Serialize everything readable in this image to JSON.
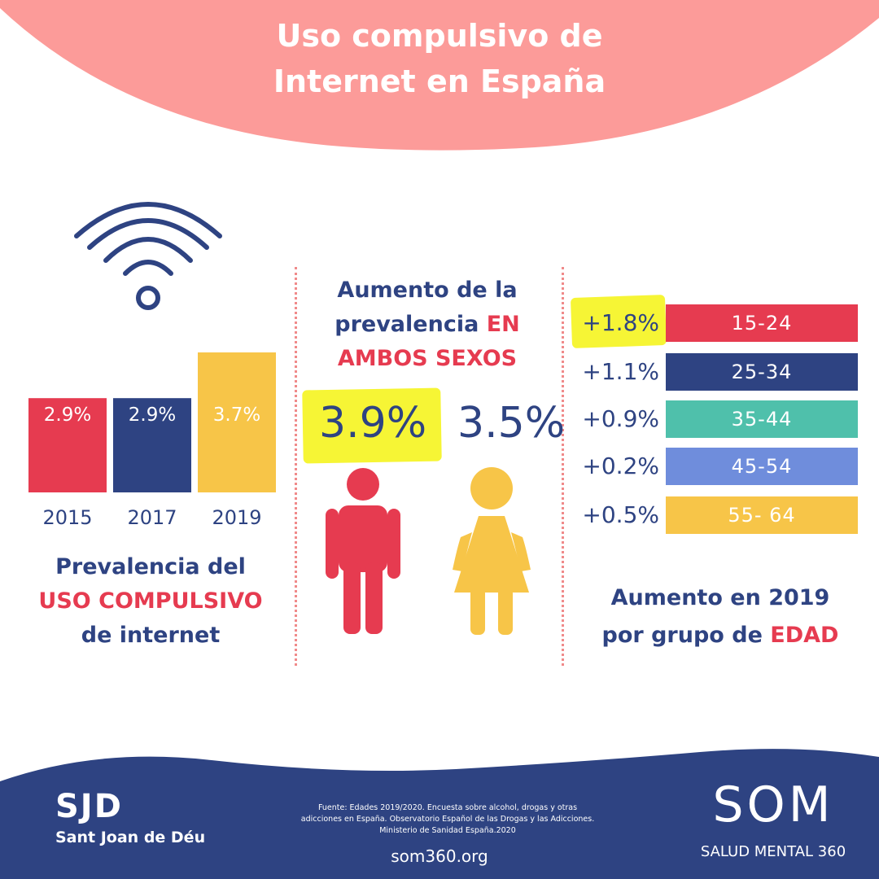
{
  "header": {
    "title_line1": "Uso compulsivo de",
    "title_line2": "Internet en España"
  },
  "colors": {
    "header_bg": "#fc9b99",
    "navy": "#2e4382",
    "red": "#e63b50",
    "yellow": "#f7c548",
    "teal": "#4fc0ab",
    "periwinkle": "#6f8ddc",
    "highlight": "#f6f535",
    "footer_bg": "#2e4382"
  },
  "left_panel": {
    "icon": "wifi-icon",
    "heading_line1": "Prevalencia del",
    "heading_line2": "USO COMPULSIVO",
    "heading_line3": "de internet"
  },
  "middle_panel": {
    "heading_line1": "Aumento de la",
    "heading_line2a": "prevalencia ",
    "heading_line2b": "EN",
    "heading_line3": "AMBOS SEXOS",
    "male_value": "3.9%",
    "female_value": "3.5%",
    "male_icon": "man-icon",
    "female_icon": "woman-icon"
  },
  "right_panel": {
    "heading_line1": "Aumento en 2019",
    "heading_line2a": "por grupo de ",
    "heading_line2b": "EDAD"
  },
  "chart_data": [
    {
      "type": "bar",
      "categories": [
        "2015",
        "2017",
        "2019"
      ],
      "values": [
        2.9,
        2.9,
        3.7
      ],
      "value_labels": [
        "2.9%",
        "2.9%",
        "3.7%"
      ],
      "colors": [
        "#e63b50",
        "#2e4382",
        "#f7c548"
      ],
      "title": "Prevalencia del USO COMPULSIVO de internet"
    },
    {
      "type": "bar",
      "categories": [
        "15-24",
        "25-34",
        "35-44",
        "45-54",
        "55- 64"
      ],
      "values": [
        1.8,
        1.1,
        0.9,
        0.2,
        0.5
      ],
      "value_labels": [
        "+1.8%",
        "+1.1%",
        "+0.9%",
        "+0.2%",
        "+0.5%"
      ],
      "colors": [
        "#e63b50",
        "#2e4382",
        "#4fc0ab",
        "#6f8ddc",
        "#f7c548"
      ],
      "title": "Aumento en 2019 por grupo de EDAD"
    }
  ],
  "footer": {
    "sjd_logo": "SJD",
    "sjd_name": "Sant Joan de Déu",
    "source_line1": "Fuente: Edades 2019/2020. Encuesta sobre alcohol, drogas y otras",
    "source_line2": "adicciones en España. Observatorio Español de las Drogas y las Adicciones.",
    "source_line3": "Ministerio de Sanidad España.2020",
    "url": "som360.org",
    "som_logo": "SOM",
    "som_tagline": "SALUD MENTAL 360"
  }
}
